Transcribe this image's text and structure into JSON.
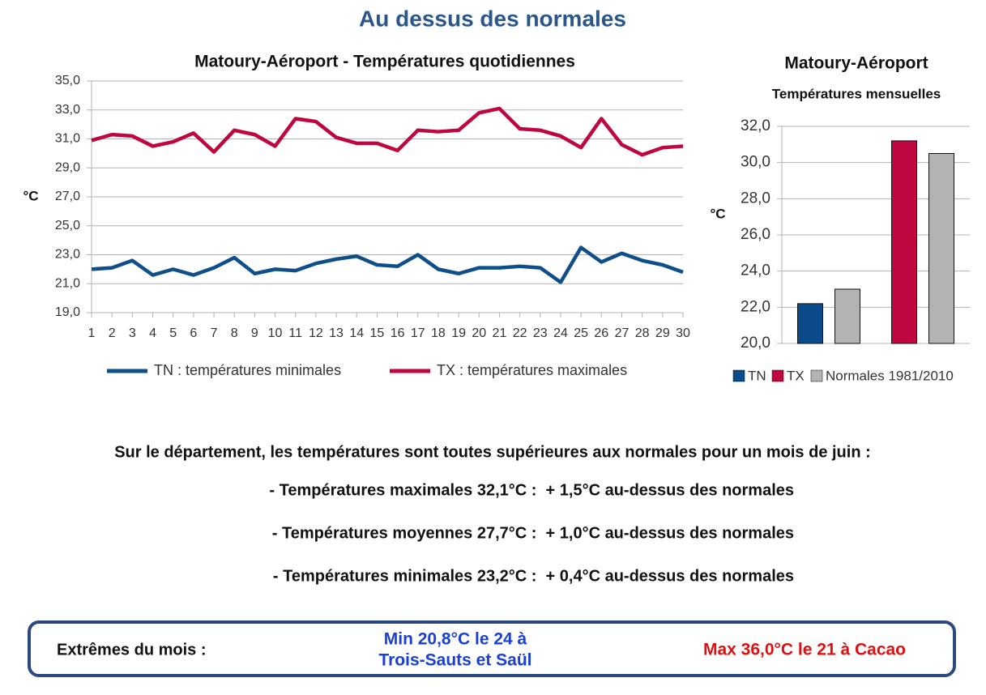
{
  "title": "Au dessus des normales",
  "chart_data": [
    {
      "type": "line",
      "title": "Matoury-Aéroport - Températures quotidiennes",
      "y_label": "°C",
      "x": [
        1,
        2,
        3,
        4,
        5,
        6,
        7,
        8,
        9,
        10,
        11,
        12,
        13,
        14,
        15,
        16,
        17,
        18,
        19,
        20,
        21,
        22,
        23,
        24,
        25,
        26,
        27,
        28,
        29,
        30
      ],
      "xlim": [
        1,
        30
      ],
      "xticks": [
        1,
        2,
        3,
        4,
        5,
        6,
        7,
        8,
        9,
        10,
        11,
        12,
        13,
        14,
        15,
        16,
        17,
        18,
        19,
        20,
        21,
        22,
        23,
        24,
        25,
        26,
        27,
        28,
        29,
        30
      ],
      "ylim": [
        19,
        35
      ],
      "yticks": [
        {
          "value": 19,
          "label": "19,0"
        },
        {
          "value": 21,
          "label": "21,0"
        },
        {
          "value": 23,
          "label": "23,0"
        },
        {
          "value": 25,
          "label": "25,0"
        },
        {
          "value": 27,
          "label": "27,0"
        },
        {
          "value": 29,
          "label": "29,0"
        },
        {
          "value": 31,
          "label": "31,0"
        },
        {
          "value": 33,
          "label": "33,0"
        },
        {
          "value": 35,
          "label": "35,0"
        }
      ],
      "grid": true,
      "legend": "bottom",
      "series": [
        {
          "name": "TN : températures minimales",
          "color": "#0e4f8a",
          "values": [
            22.0,
            22.1,
            22.6,
            21.6,
            22.0,
            21.6,
            22.1,
            22.8,
            21.7,
            22.0,
            21.9,
            22.4,
            22.7,
            22.9,
            22.3,
            22.2,
            23.0,
            22.0,
            21.7,
            22.1,
            22.1,
            22.2,
            22.1,
            21.1,
            23.5,
            22.5,
            23.1,
            22.6,
            22.3,
            21.8
          ]
        },
        {
          "name": "TX : températures maximales",
          "color": "#c0063f",
          "values": [
            30.9,
            31.3,
            31.2,
            30.5,
            30.8,
            31.4,
            30.1,
            31.6,
            31.3,
            30.5,
            32.4,
            32.2,
            31.1,
            30.7,
            30.7,
            30.2,
            31.6,
            31.5,
            31.6,
            32.8,
            33.1,
            31.7,
            31.6,
            31.2,
            30.4,
            32.4,
            30.6,
            29.9,
            30.4,
            30.5
          ]
        }
      ]
    },
    {
      "type": "bar",
      "title": "Matoury-Aéroport",
      "subtitle": "Températures mensuelles",
      "y_label": "°C",
      "categories": [
        null,
        null
      ],
      "ylim": [
        20,
        32
      ],
      "yticks": [
        {
          "value": 20,
          "label": "20,0"
        },
        {
          "value": 22,
          "label": "22,0"
        },
        {
          "value": 24,
          "label": "24,0"
        },
        {
          "value": 26,
          "label": "26,0"
        },
        {
          "value": 28,
          "label": "28,0"
        },
        {
          "value": 30,
          "label": "30,0"
        },
        {
          "value": 32,
          "label": "32,0"
        }
      ],
      "grid": true,
      "legend": "bottom",
      "series": [
        {
          "name": "TN",
          "color": "#0b4a8b",
          "values": [
            22.2,
            null
          ]
        },
        {
          "name": "TX",
          "color": "#c0063f",
          "values": [
            null,
            31.2
          ]
        },
        {
          "name": "Normales 1981/2010",
          "color": "#b3b3b3",
          "values": [
            23.0,
            30.5
          ]
        }
      ]
    }
  ],
  "summary": {
    "intro": "Sur le département, les températures sont toutes supérieures aux normales pour un mois de juin :",
    "lines": [
      "- Températures maximales 32,1°C :  + 1,5°C au-dessus des normales",
      "- Températures moyennes 27,7°C :  + 1,0°C au-dessus des normales",
      "- Températures minimales 23,2°C :  + 0,4°C au-dessus des normales"
    ]
  },
  "extremes": {
    "label": "Extrêmes du mois :",
    "min": [
      "Min 20,8°C le 24 à",
      "Trois-Sauts et Saül"
    ],
    "max": "Max 36,0°C le 21 à Cacao"
  }
}
